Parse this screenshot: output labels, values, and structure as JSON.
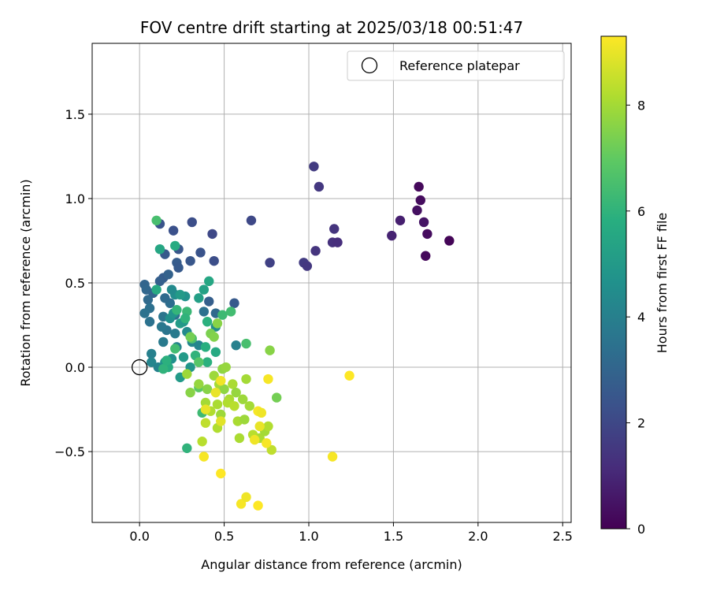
{
  "chart_data": {
    "type": "scatter",
    "title": "FOV centre drift starting at 2025/03/18 00:51:47",
    "xlabel": "Angular distance from reference (arcmin)",
    "ylabel": "Rotation from reference (arcmin)",
    "xlim": [
      -0.28,
      2.55
    ],
    "ylim": [
      -0.92,
      1.92
    ],
    "xticks": [
      0.0,
      0.5,
      1.0,
      1.5,
      2.0,
      2.5
    ],
    "xtick_labels": [
      "0.0",
      "0.5",
      "1.0",
      "1.5",
      "2.0",
      "2.5"
    ],
    "yticks": [
      -0.5,
      0.0,
      0.5,
      1.0,
      1.5
    ],
    "ytick_labels": [
      "−0.5",
      "0.0",
      "0.5",
      "1.0",
      "1.5"
    ],
    "grid": true,
    "legend": {
      "placement": "top-right",
      "entries": [
        "Reference platepar"
      ]
    },
    "reference": {
      "name": "Reference platepar",
      "x": 0.0,
      "y": 0.0
    },
    "colorbar": {
      "label": "Hours from first FF file",
      "colormap": "viridis",
      "range": [
        0,
        9.3
      ],
      "ticks": [
        0,
        2,
        4,
        6,
        8
      ],
      "tick_labels": [
        "0",
        "2",
        "4",
        "6",
        "8"
      ]
    },
    "series": [
      {
        "points": [
          {
            "x": 1.65,
            "y": 1.07,
            "c": 0.2
          },
          {
            "x": 1.66,
            "y": 0.99,
            "c": 0.3
          },
          {
            "x": 1.64,
            "y": 0.93,
            "c": 0.4
          },
          {
            "x": 1.54,
            "y": 0.87,
            "c": 0.8
          },
          {
            "x": 1.68,
            "y": 0.86,
            "c": 0.5
          },
          {
            "x": 1.49,
            "y": 0.78,
            "c": 0.9
          },
          {
            "x": 1.7,
            "y": 0.79,
            "c": 0.3
          },
          {
            "x": 1.83,
            "y": 0.75,
            "c": 0.1
          },
          {
            "x": 1.69,
            "y": 0.66,
            "c": 0.2
          },
          {
            "x": 1.03,
            "y": 1.19,
            "c": 1.6
          },
          {
            "x": 1.06,
            "y": 1.07,
            "c": 1.5
          },
          {
            "x": 1.15,
            "y": 0.82,
            "c": 1.4
          },
          {
            "x": 1.14,
            "y": 0.74,
            "c": 1.3
          },
          {
            "x": 1.17,
            "y": 0.74,
            "c": 1.2
          },
          {
            "x": 1.04,
            "y": 0.69,
            "c": 1.4
          },
          {
            "x": 0.97,
            "y": 0.62,
            "c": 1.6
          },
          {
            "x": 0.99,
            "y": 0.6,
            "c": 1.5
          },
          {
            "x": 0.77,
            "y": 0.62,
            "c": 1.8
          },
          {
            "x": 0.66,
            "y": 0.87,
            "c": 2.0
          },
          {
            "x": 0.31,
            "y": 0.86,
            "c": 2.2
          },
          {
            "x": 0.43,
            "y": 0.79,
            "c": 2.0
          },
          {
            "x": 0.2,
            "y": 0.81,
            "c": 2.3
          },
          {
            "x": 0.12,
            "y": 0.85,
            "c": 2.4
          },
          {
            "x": 0.36,
            "y": 0.68,
            "c": 2.4
          },
          {
            "x": 0.3,
            "y": 0.63,
            "c": 2.5
          },
          {
            "x": 0.44,
            "y": 0.63,
            "c": 2.2
          },
          {
            "x": 0.15,
            "y": 0.67,
            "c": 2.6
          },
          {
            "x": 0.22,
            "y": 0.62,
            "c": 2.7
          },
          {
            "x": 0.23,
            "y": 0.7,
            "c": 2.5
          },
          {
            "x": 0.14,
            "y": 0.53,
            "c": 2.7
          },
          {
            "x": 0.12,
            "y": 0.51,
            "c": 2.8
          },
          {
            "x": 0.23,
            "y": 0.59,
            "c": 2.6
          },
          {
            "x": 0.17,
            "y": 0.55,
            "c": 2.9
          },
          {
            "x": 0.03,
            "y": 0.49,
            "c": 3.0
          },
          {
            "x": 0.04,
            "y": 0.46,
            "c": 3.1
          },
          {
            "x": 0.08,
            "y": 0.44,
            "c": 3.0
          },
          {
            "x": 0.05,
            "y": 0.4,
            "c": 3.2
          },
          {
            "x": 0.56,
            "y": 0.38,
            "c": 2.6
          },
          {
            "x": 0.41,
            "y": 0.39,
            "c": 2.8
          },
          {
            "x": 0.18,
            "y": 0.38,
            "c": 3.3
          },
          {
            "x": 0.15,
            "y": 0.41,
            "c": 3.2
          },
          {
            "x": 0.06,
            "y": 0.35,
            "c": 3.4
          },
          {
            "x": 0.03,
            "y": 0.32,
            "c": 3.5
          },
          {
            "x": 0.06,
            "y": 0.27,
            "c": 3.5
          },
          {
            "x": 0.45,
            "y": 0.32,
            "c": 3.2
          },
          {
            "x": 0.38,
            "y": 0.33,
            "c": 3.4
          },
          {
            "x": 0.14,
            "y": 0.3,
            "c": 3.6
          },
          {
            "x": 0.21,
            "y": 0.31,
            "c": 3.4
          },
          {
            "x": 0.16,
            "y": 0.22,
            "c": 3.6
          },
          {
            "x": 0.21,
            "y": 0.2,
            "c": 3.8
          },
          {
            "x": 0.13,
            "y": 0.24,
            "c": 3.7
          },
          {
            "x": 0.14,
            "y": 0.15,
            "c": 3.8
          },
          {
            "x": 0.22,
            "y": 0.12,
            "c": 4.1
          },
          {
            "x": 0.07,
            "y": 0.08,
            "c": 4.0
          },
          {
            "x": 0.07,
            "y": 0.03,
            "c": 4.2
          },
          {
            "x": 0.11,
            "y": 0.0,
            "c": 4.1
          },
          {
            "x": 0.31,
            "y": 0.15,
            "c": 4.3
          },
          {
            "x": 0.35,
            "y": 0.13,
            "c": 4.2
          },
          {
            "x": 0.57,
            "y": 0.13,
            "c": 4.0
          },
          {
            "x": 0.28,
            "y": 0.21,
            "c": 4.4
          },
          {
            "x": 0.45,
            "y": 0.24,
            "c": 4.5
          },
          {
            "x": 0.19,
            "y": 0.05,
            "c": 4.6
          },
          {
            "x": 0.15,
            "y": 0.03,
            "c": 4.7
          },
          {
            "x": 0.3,
            "y": 0.0,
            "c": 4.8
          },
          {
            "x": 0.24,
            "y": -0.06,
            "c": 5.0
          },
          {
            "x": 0.26,
            "y": 0.06,
            "c": 5.0
          },
          {
            "x": 0.18,
            "y": 0.29,
            "c": 4.6
          },
          {
            "x": 0.2,
            "y": 0.32,
            "c": 4.8
          },
          {
            "x": 0.24,
            "y": 0.26,
            "c": 5.1
          },
          {
            "x": 0.26,
            "y": 0.27,
            "c": 4.9
          },
          {
            "x": 0.27,
            "y": 0.42,
            "c": 4.7
          },
          {
            "x": 0.21,
            "y": 0.43,
            "c": 4.5
          },
          {
            "x": 0.19,
            "y": 0.46,
            "c": 4.4
          },
          {
            "x": 0.24,
            "y": 0.43,
            "c": 5.0
          },
          {
            "x": 0.35,
            "y": 0.41,
            "c": 5.2
          },
          {
            "x": 0.38,
            "y": 0.46,
            "c": 5.3
          },
          {
            "x": 0.41,
            "y": 0.51,
            "c": 5.5
          },
          {
            "x": 0.1,
            "y": 0.46,
            "c": 5.6
          },
          {
            "x": 0.12,
            "y": 0.7,
            "c": 5.5
          },
          {
            "x": 0.21,
            "y": 0.72,
            "c": 5.7
          },
          {
            "x": 0.1,
            "y": 0.87,
            "c": 6.5
          },
          {
            "x": 0.39,
            "y": 0.12,
            "c": 5.8
          },
          {
            "x": 0.45,
            "y": 0.09,
            "c": 5.6
          },
          {
            "x": 0.4,
            "y": 0.03,
            "c": 5.9
          },
          {
            "x": 0.33,
            "y": 0.07,
            "c": 6.0
          },
          {
            "x": 0.17,
            "y": 0.0,
            "c": 5.7
          },
          {
            "x": 0.14,
            "y": -0.01,
            "c": 6.0
          },
          {
            "x": 0.16,
            "y": 0.04,
            "c": 5.9
          },
          {
            "x": 0.49,
            "y": 0.31,
            "c": 6.3
          },
          {
            "x": 0.54,
            "y": 0.33,
            "c": 6.4
          },
          {
            "x": 0.22,
            "y": 0.34,
            "c": 6.1
          },
          {
            "x": 0.28,
            "y": 0.33,
            "c": 6.2
          },
          {
            "x": 0.27,
            "y": 0.29,
            "c": 6.0
          },
          {
            "x": 0.4,
            "y": 0.27,
            "c": 5.9
          },
          {
            "x": 0.63,
            "y": 0.14,
            "c": 6.5
          },
          {
            "x": 0.31,
            "y": 0.17,
            "c": 6.6
          },
          {
            "x": 0.21,
            "y": 0.11,
            "c": 6.4
          },
          {
            "x": 0.35,
            "y": 0.03,
            "c": 6.8
          },
          {
            "x": 0.35,
            "y": -0.12,
            "c": 6.9
          },
          {
            "x": 0.37,
            "y": -0.27,
            "c": 6.3
          },
          {
            "x": 0.28,
            "y": -0.48,
            "c": 6.0
          },
          {
            "x": 0.42,
            "y": 0.2,
            "c": 7.4
          },
          {
            "x": 0.44,
            "y": 0.18,
            "c": 7.5
          },
          {
            "x": 0.3,
            "y": 0.18,
            "c": 7.3
          },
          {
            "x": 0.46,
            "y": 0.26,
            "c": 7.6
          },
          {
            "x": 0.77,
            "y": 0.1,
            "c": 7.6
          },
          {
            "x": 0.81,
            "y": -0.18,
            "c": 7.3
          },
          {
            "x": 0.49,
            "y": -0.01,
            "c": 7.7
          },
          {
            "x": 0.51,
            "y": 0.0,
            "c": 7.8
          },
          {
            "x": 0.28,
            "y": -0.04,
            "c": 7.9
          },
          {
            "x": 0.3,
            "y": -0.15,
            "c": 7.6
          },
          {
            "x": 0.35,
            "y": -0.1,
            "c": 7.8
          },
          {
            "x": 0.4,
            "y": -0.13,
            "c": 7.6
          },
          {
            "x": 0.44,
            "y": -0.05,
            "c": 7.9
          },
          {
            "x": 0.47,
            "y": -0.1,
            "c": 8.0
          },
          {
            "x": 0.5,
            "y": -0.13,
            "c": 7.7
          },
          {
            "x": 0.55,
            "y": -0.1,
            "c": 8.1
          },
          {
            "x": 0.63,
            "y": -0.07,
            "c": 8.0
          },
          {
            "x": 0.57,
            "y": -0.15,
            "c": 7.8
          },
          {
            "x": 0.53,
            "y": -0.19,
            "c": 8.1
          },
          {
            "x": 0.61,
            "y": -0.19,
            "c": 7.9
          },
          {
            "x": 0.39,
            "y": -0.21,
            "c": 8.0
          },
          {
            "x": 0.42,
            "y": -0.26,
            "c": 8.2
          },
          {
            "x": 0.46,
            "y": -0.22,
            "c": 8.1
          },
          {
            "x": 0.48,
            "y": -0.28,
            "c": 7.9
          },
          {
            "x": 0.52,
            "y": -0.21,
            "c": 8.2
          },
          {
            "x": 0.56,
            "y": -0.23,
            "c": 8.3
          },
          {
            "x": 0.65,
            "y": -0.23,
            "c": 8.0
          },
          {
            "x": 0.58,
            "y": -0.32,
            "c": 8.1
          },
          {
            "x": 0.62,
            "y": -0.31,
            "c": 7.9
          },
          {
            "x": 0.39,
            "y": -0.33,
            "c": 8.4
          },
          {
            "x": 0.46,
            "y": -0.36,
            "c": 8.2
          },
          {
            "x": 0.67,
            "y": -0.4,
            "c": 8.3
          },
          {
            "x": 0.71,
            "y": -0.42,
            "c": 8.1
          },
          {
            "x": 0.74,
            "y": -0.38,
            "c": 8.0
          },
          {
            "x": 0.78,
            "y": -0.49,
            "c": 8.4
          },
          {
            "x": 0.76,
            "y": -0.35,
            "c": 8.2
          },
          {
            "x": 0.59,
            "y": -0.42,
            "c": 8.1
          },
          {
            "x": 0.37,
            "y": -0.44,
            "c": 8.3
          },
          {
            "x": 0.45,
            "y": -0.15,
            "c": 9.0
          },
          {
            "x": 0.48,
            "y": -0.08,
            "c": 9.1
          },
          {
            "x": 0.39,
            "y": -0.25,
            "c": 9.0
          },
          {
            "x": 0.48,
            "y": -0.32,
            "c": 8.9
          },
          {
            "x": 0.7,
            "y": -0.26,
            "c": 9.2
          },
          {
            "x": 0.72,
            "y": -0.27,
            "c": 9.1
          },
          {
            "x": 0.71,
            "y": -0.35,
            "c": 9.0
          },
          {
            "x": 0.76,
            "y": -0.07,
            "c": 9.2
          },
          {
            "x": 0.68,
            "y": -0.43,
            "c": 9.1
          },
          {
            "x": 0.75,
            "y": -0.45,
            "c": 9.2
          },
          {
            "x": 0.38,
            "y": -0.53,
            "c": 9.2
          },
          {
            "x": 0.48,
            "y": -0.63,
            "c": 9.3
          },
          {
            "x": 0.6,
            "y": -0.81,
            "c": 9.2
          },
          {
            "x": 0.63,
            "y": -0.77,
            "c": 9.1
          },
          {
            "x": 0.7,
            "y": -0.82,
            "c": 9.3
          },
          {
            "x": 1.14,
            "y": -0.53,
            "c": 9.2
          },
          {
            "x": 1.24,
            "y": -0.05,
            "c": 9.3
          }
        ]
      }
    ]
  }
}
